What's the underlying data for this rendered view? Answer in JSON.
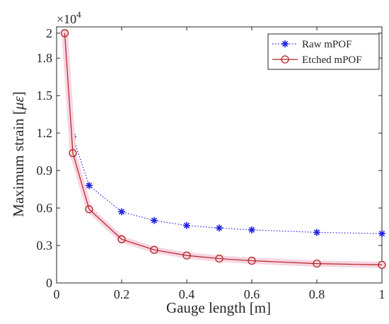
{
  "chart_data": {
    "type": "line",
    "xlabel": "Gauge length [m]",
    "ylabel_prefix": "Maximum strain [",
    "ylabel_symbol": "με",
    "ylabel_suffix": "]",
    "exponent_base": "×10",
    "exponent_power": "4",
    "xlim": [
      0,
      1
    ],
    "ylim": [
      0,
      20500
    ],
    "x_ticks": [
      0,
      0.2,
      0.4,
      0.6,
      0.8,
      1
    ],
    "x_tick_labels": [
      "0",
      "0.2",
      "0.4",
      "0.6",
      "0.8",
      "1"
    ],
    "y_ticks": [
      0,
      3000,
      6000,
      9000,
      12000,
      15000,
      18000,
      20000
    ],
    "y_tick_labels": [
      "0",
      "0.3",
      "0.6",
      "0.9",
      "1.2",
      "1.5",
      "1.8",
      "2"
    ],
    "grid": false,
    "legend_position": "top-right",
    "series": [
      {
        "name": "Raw mPOF",
        "color": "#1f1fe0",
        "line_style": "dotted",
        "marker": "asterisk",
        "x": [
          0.025,
          0.05,
          0.1,
          0.2,
          0.3,
          0.4,
          0.5,
          0.6,
          0.8,
          1.0
        ],
        "y": [
          20000,
          11700,
          7800,
          5700,
          5000,
          4600,
          4400,
          4250,
          4050,
          3950
        ]
      },
      {
        "name": "Etched mPOF",
        "color": "#b22222",
        "line_style": "solid",
        "marker": "circle",
        "x": [
          0.025,
          0.05,
          0.1,
          0.2,
          0.3,
          0.4,
          0.5,
          0.6,
          0.8,
          1.0
        ],
        "y": [
          20000,
          10400,
          5900,
          3500,
          2650,
          2200,
          1950,
          1780,
          1550,
          1450
        ]
      }
    ]
  }
}
